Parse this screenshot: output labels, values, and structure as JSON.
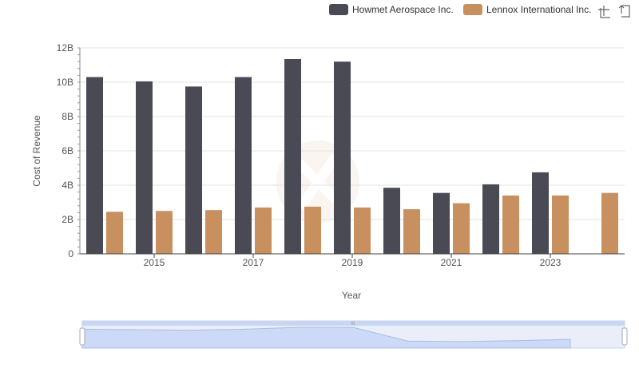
{
  "chart_data": {
    "type": "bar",
    "x": [
      2014,
      2015,
      2016,
      2017,
      2018,
      2019,
      2020,
      2021,
      2022,
      2023,
      2024
    ],
    "x_tick_labels": [
      "2015",
      "2017",
      "2019",
      "2021",
      "2023"
    ],
    "series": [
      {
        "name": "Howmet Aerospace Inc.",
        "color": "#4a4a55",
        "values": [
          10.3,
          10.05,
          9.75,
          10.3,
          11.35,
          11.2,
          3.85,
          3.55,
          4.05,
          4.75,
          null
        ]
      },
      {
        "name": "Lennox International Inc.",
        "color": "#c8905e",
        "values": [
          2.45,
          2.5,
          2.55,
          2.7,
          2.75,
          2.7,
          2.6,
          2.95,
          3.4,
          3.4,
          3.55
        ]
      }
    ],
    "xlabel": "Year",
    "ylabel": "Cost of Revenue",
    "ylim": [
      0,
      12
    ],
    "y_tick_values": [
      0,
      2,
      4,
      6,
      8,
      10,
      12
    ],
    "y_tick_labels": [
      "0",
      "2B",
      "4B",
      "6B",
      "8B",
      "10B",
      "12B"
    ],
    "value_unit": "billions",
    "grid": true,
    "legend_position": "top-right"
  },
  "toolbar": {
    "icons": [
      "zoom-icon",
      "restore-icon"
    ]
  },
  "data_zoom": {
    "handle_label": "III",
    "range": [
      0,
      100
    ]
  }
}
